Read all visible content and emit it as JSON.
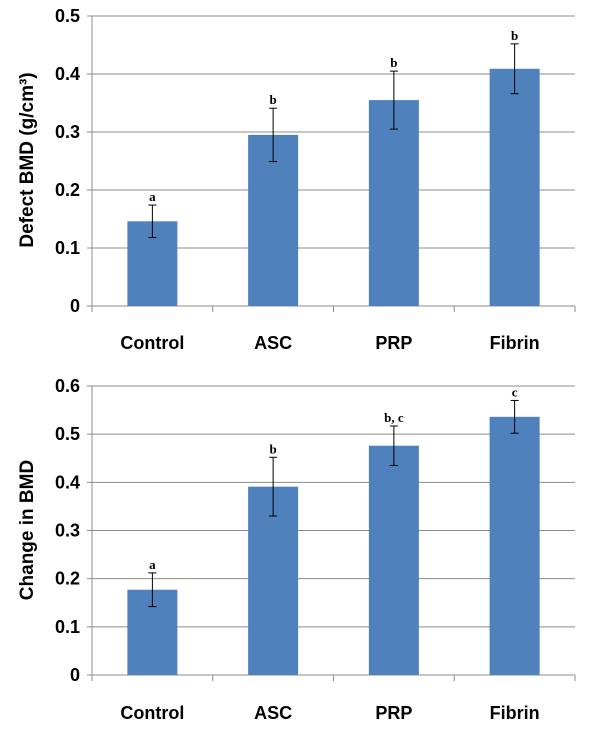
{
  "chart_data": [
    {
      "type": "bar",
      "title": "",
      "xlabel": "",
      "ylabel": "Defect BMD (g/cm³)",
      "ylim": [
        0,
        0.5
      ],
      "yticks": [
        "0",
        "0.1",
        "0.2",
        "0.3",
        "0.4",
        "0.5"
      ],
      "categories": [
        "Control",
        "ASC",
        "PRP",
        "Fibrin"
      ],
      "values": [
        0.146,
        0.295,
        0.355,
        0.409
      ],
      "errors": [
        0.028,
        0.046,
        0.05,
        0.043
      ],
      "significance_labels": [
        "a",
        "b",
        "b",
        "b"
      ],
      "grid": true,
      "bar_color": "#4f81bd"
    },
    {
      "type": "bar",
      "title": "",
      "xlabel": "",
      "ylabel": "Change in BMD",
      "ylim": [
        0,
        0.6
      ],
      "yticks": [
        "0",
        "0.1",
        "0.2",
        "0.3",
        "0.4",
        "0.5",
        "0.6"
      ],
      "categories": [
        "Control",
        "ASC",
        "PRP",
        "Fibrin"
      ],
      "values": [
        0.177,
        0.391,
        0.476,
        0.536
      ],
      "errors": [
        0.035,
        0.061,
        0.041,
        0.034
      ],
      "significance_labels": [
        "a",
        "b",
        "b, c",
        "c"
      ],
      "grid": true,
      "bar_color": "#4f81bd"
    }
  ]
}
